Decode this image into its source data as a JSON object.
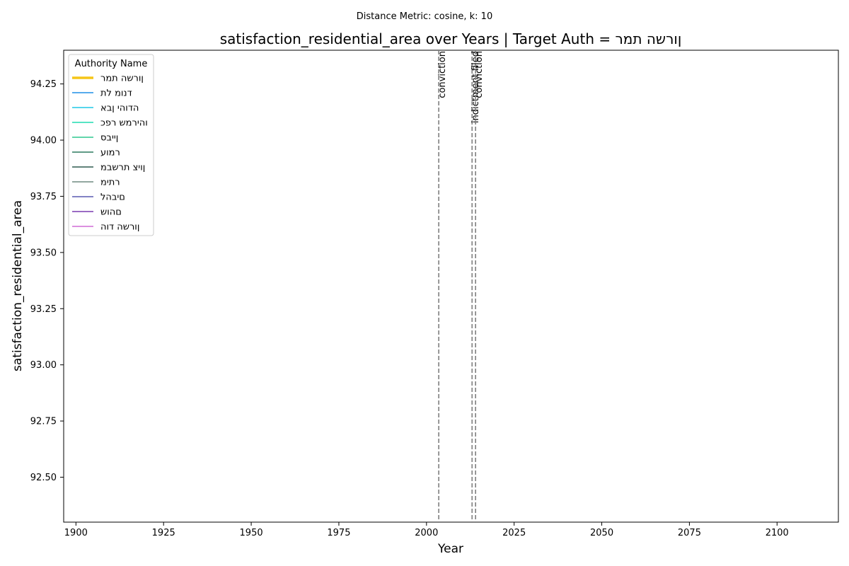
{
  "chart_data": {
    "type": "line",
    "suptitle": "Distance Metric: cosine, k: 10",
    "title": "satisfaction_residential_area over Years | Target Auth = ןורשה תמר",
    "xlabel": "Year",
    "ylabel": "satisfaction_residential_area",
    "xlim": [
      1896.5,
      2117.5
    ],
    "ylim": [
      92.3,
      94.4
    ],
    "xticks": [
      1900,
      1925,
      1950,
      1975,
      2000,
      2025,
      2050,
      2075,
      2100
    ],
    "yticks": [
      92.5,
      92.75,
      93.0,
      93.25,
      93.5,
      93.75,
      94.0,
      94.25
    ],
    "ytick_labels": [
      "92.50",
      "92.75",
      "93.00",
      "93.25",
      "93.50",
      "93.75",
      "94.00",
      "94.25"
    ],
    "grid": false,
    "legend": {
      "title": "Authority Name",
      "placement": "top-left",
      "entries": [
        {
          "name": "ןורשה תמר",
          "color": "#f5c518",
          "highlight": true
        },
        {
          "name": "דנומ לת",
          "color": "#1f8fe6"
        },
        {
          "name": "הדוהי ןבא",
          "color": "#1fc8e6"
        },
        {
          "name": "והירמש רפכ",
          "color": "#1fdcb0"
        },
        {
          "name": "ןייבס",
          "color": "#2ec98f"
        },
        {
          "name": "רמוע",
          "color": "#2b7a5e"
        },
        {
          "name": "ןויצ תרשבמ",
          "color": "#2f5a4e"
        },
        {
          "name": "רתימ",
          "color": "#6e8a80"
        },
        {
          "name": "םיבהל",
          "color": "#5a5ab0"
        },
        {
          "name": "םהוש",
          "color": "#7a3cb0"
        },
        {
          "name": "ןורשה דוה",
          "color": "#d06cd6"
        }
      ]
    },
    "series": [],
    "events": [
      {
        "year": 2003.5,
        "label": "conviction"
      },
      {
        "year": 2013.0,
        "label": "indictment filed"
      },
      {
        "year": 2014.0,
        "label": "conviction"
      }
    ]
  }
}
